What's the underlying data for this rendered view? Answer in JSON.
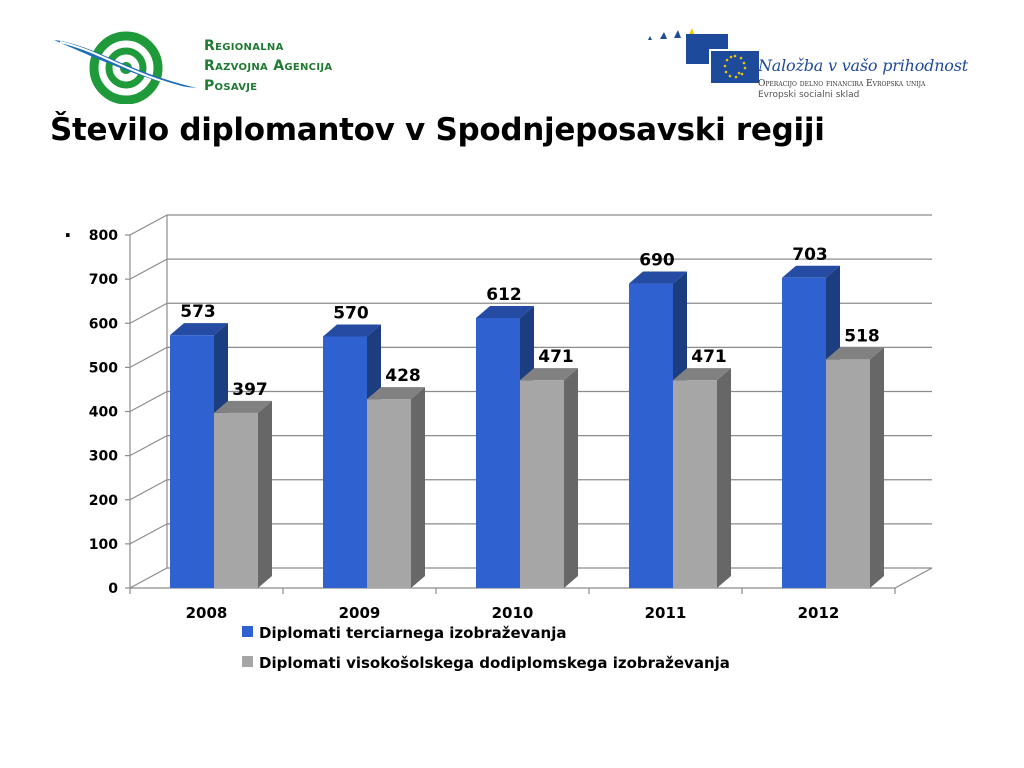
{
  "header": {
    "org_name_lines": [
      "Regionalna",
      "Razvojna Agencija",
      "Posavje"
    ],
    "eu_slogan": "Naložba v vašo prihodnost",
    "eu_line2": "Operacijo delno financira Evropska unija",
    "eu_line3": "Evropski socialni sklad"
  },
  "page": {
    "title": "Število diplomantov v Spodnjeposavski regiji",
    "stray_mark": "."
  },
  "colors": {
    "series_tertiary": "#2f62d0",
    "series_undergrad": "#a6a6a6",
    "org_green": "#1f7a32",
    "eu_blue": "#1e4a9c"
  },
  "chart_data": {
    "type": "bar",
    "style": "3d-clustered-column",
    "categories": [
      "2008",
      "2009",
      "2010",
      "2011",
      "2012"
    ],
    "series": [
      {
        "name": "Diplomati terciarnega izobraževanja",
        "values": [
          573,
          570,
          612,
          690,
          703
        ]
      },
      {
        "name": "Diplomati visokošolskega dodiplomskega izobraževanja",
        "values": [
          397,
          428,
          471,
          471,
          518
        ]
      }
    ],
    "yticks": [
      "0",
      "100",
      "200",
      "300",
      "400",
      "500",
      "600",
      "700",
      "800"
    ],
    "ylim": [
      0,
      800
    ],
    "grid": true,
    "legend_position": "bottom"
  }
}
